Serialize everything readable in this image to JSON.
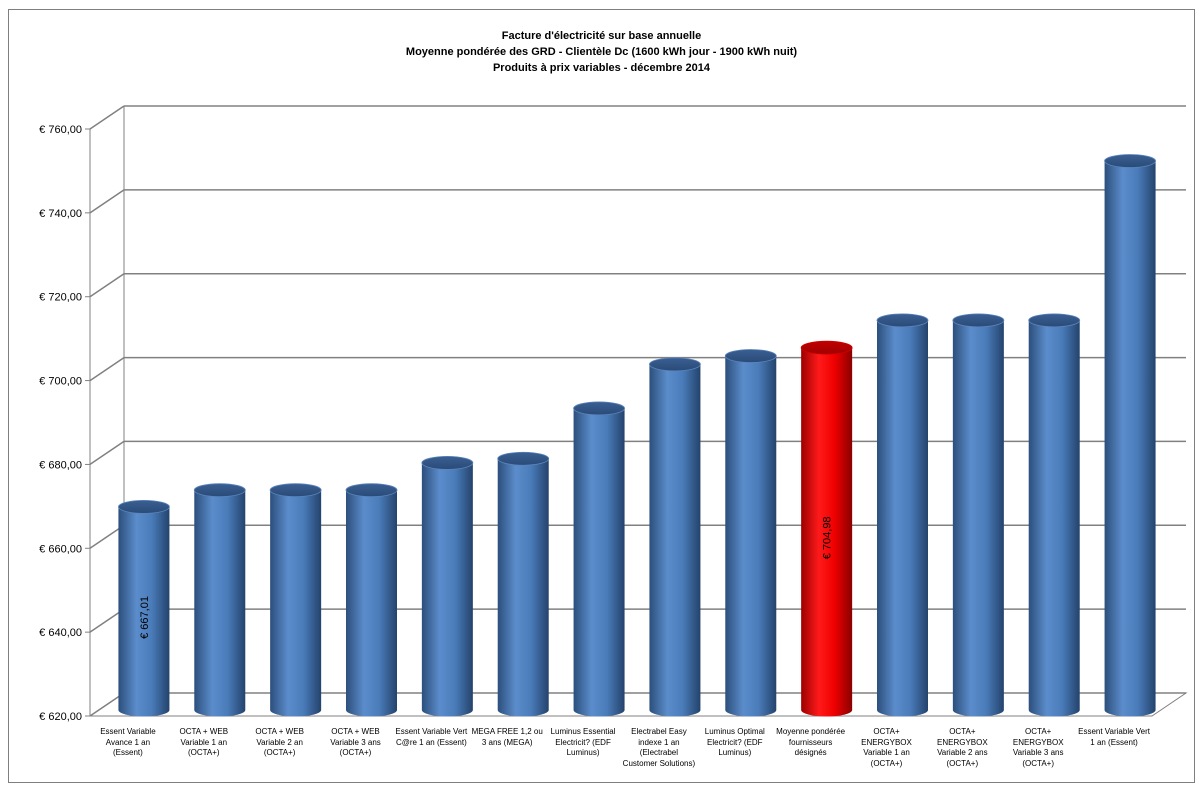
{
  "colors": {
    "bar": "#4f81bd",
    "highlight": "#ff0000",
    "grid": "#808080"
  },
  "chart_data": {
    "type": "bar",
    "title": "Facture d'électricité sur base annuelle",
    "subtitle_lines": [
      "Moyenne pondérée  des GRD - Clientèle Dc (1600 kWh jour - 1900 kWh nuit)",
      "Produits à prix variables - décembre 2014"
    ],
    "xlabel": "",
    "ylabel": "",
    "ylim": [
      620,
      760
    ],
    "yticks": [
      620,
      640,
      660,
      680,
      700,
      720,
      740,
      760
    ],
    "ytick_labels": [
      "€ 620,00",
      "€ 640,00",
      "€ 660,00",
      "€ 680,00",
      "€ 700,00",
      "€ 720,00",
      "€ 740,00",
      "€ 760,00"
    ],
    "grid": true,
    "legend": "none",
    "categories": [
      "Essent Variable Avance 1 an (Essent)",
      "OCTA + WEB Variable 1 an (OCTA+)",
      "OCTA + WEB Variable 2 an (OCTA+)",
      "OCTA + WEB Variable 3 ans (OCTA+)",
      "Essent Variable Vert C@re 1 an (Essent)",
      "MEGA FREE 1,2 ou 3 ans (MEGA)",
      "Luminus Essential Electricit? (EDF Luminus)",
      "Electrabel Easy indexe 1 an (Electrabel Customer Solutions)",
      "Luminus Optimal Electricit? (EDF Luminus)",
      "Moyenne pondérée fournisseurs désignés",
      "OCTA+ ENERGYBOX Variable 1 an (OCTA+)",
      "OCTA+ ENERGYBOX Variable 2 ans (OCTA+)",
      "OCTA+ ENERGYBOX Variable 3 ans (OCTA+)",
      "Essent Variable Vert 1 an (Essent)"
    ],
    "values": [
      667.01,
      671,
      671,
      671,
      677.5,
      678.5,
      690.5,
      701,
      703,
      704.98,
      711.5,
      711.5,
      711.5,
      749.5
    ],
    "highlight_index": 9,
    "data_labels": [
      {
        "index": 0,
        "text": "€ 667,01"
      },
      {
        "index": 9,
        "text": "€ 704,98"
      }
    ]
  }
}
